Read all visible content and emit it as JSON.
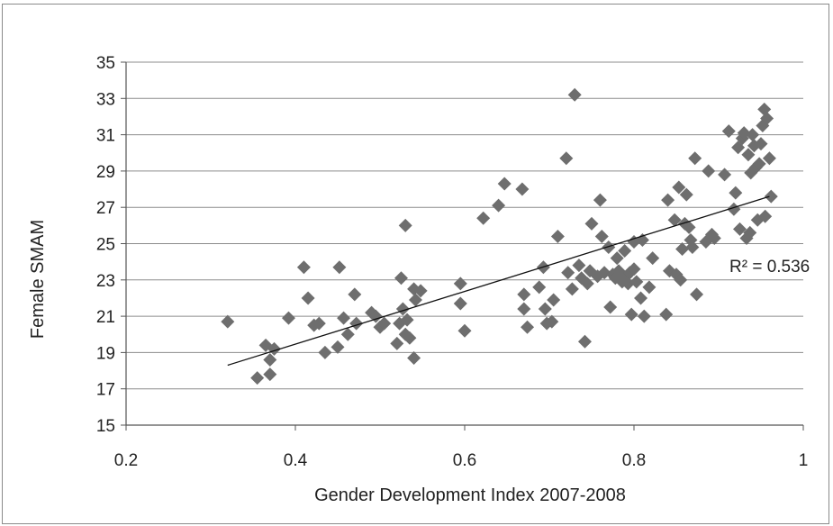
{
  "chart_data": {
    "type": "scatter",
    "xlabel": "Gender Development Index 2007-2008",
    "ylabel": "Female SMAM",
    "xlim": [
      0.2,
      1.0
    ],
    "ylim": [
      15,
      35
    ],
    "x_ticks": [
      "0.2",
      "0.4",
      "0.6",
      "0.8",
      "1"
    ],
    "y_ticks": [
      "15",
      "17",
      "19",
      "21",
      "23",
      "25",
      "27",
      "29",
      "31",
      "33",
      "35"
    ],
    "grid": "horizontal",
    "marker": "diamond",
    "marker_color": "#6e6e6e",
    "annotation": "R² = 0.536",
    "trendline": {
      "x": [
        0.32,
        0.96
      ],
      "y": [
        18.3,
        27.6
      ]
    },
    "points": [
      [
        0.32,
        20.7
      ],
      [
        0.355,
        17.6
      ],
      [
        0.365,
        19.4
      ],
      [
        0.37,
        17.8
      ],
      [
        0.37,
        18.6
      ],
      [
        0.375,
        19.2
      ],
      [
        0.392,
        20.9
      ],
      [
        0.41,
        23.7
      ],
      [
        0.415,
        22.0
      ],
      [
        0.422,
        20.5
      ],
      [
        0.428,
        20.6
      ],
      [
        0.435,
        19.0
      ],
      [
        0.45,
        19.3
      ],
      [
        0.452,
        23.7
      ],
      [
        0.457,
        20.9
      ],
      [
        0.462,
        20.0
      ],
      [
        0.47,
        22.2
      ],
      [
        0.472,
        20.6
      ],
      [
        0.49,
        21.2
      ],
      [
        0.495,
        21.0
      ],
      [
        0.5,
        20.4
      ],
      [
        0.505,
        20.6
      ],
      [
        0.52,
        19.5
      ],
      [
        0.523,
        20.6
      ],
      [
        0.525,
        23.1
      ],
      [
        0.527,
        21.4
      ],
      [
        0.53,
        26.0
      ],
      [
        0.53,
        20.0
      ],
      [
        0.532,
        20.8
      ],
      [
        0.535,
        19.8
      ],
      [
        0.54,
        18.7
      ],
      [
        0.54,
        22.5
      ],
      [
        0.542,
        21.9
      ],
      [
        0.548,
        22.4
      ],
      [
        0.595,
        21.7
      ],
      [
        0.595,
        22.8
      ],
      [
        0.6,
        20.2
      ],
      [
        0.622,
        26.4
      ],
      [
        0.64,
        27.1
      ],
      [
        0.647,
        28.3
      ],
      [
        0.668,
        28.0
      ],
      [
        0.67,
        22.2
      ],
      [
        0.67,
        21.4
      ],
      [
        0.674,
        20.4
      ],
      [
        0.688,
        22.6
      ],
      [
        0.693,
        23.7
      ],
      [
        0.695,
        21.4
      ],
      [
        0.697,
        20.6
      ],
      [
        0.703,
        20.7
      ],
      [
        0.705,
        21.9
      ],
      [
        0.71,
        25.4
      ],
      [
        0.72,
        29.7
      ],
      [
        0.722,
        23.4
      ],
      [
        0.727,
        22.5
      ],
      [
        0.73,
        33.2
      ],
      [
        0.735,
        23.8
      ],
      [
        0.738,
        23.1
      ],
      [
        0.742,
        19.6
      ],
      [
        0.745,
        22.8
      ],
      [
        0.748,
        23.5
      ],
      [
        0.75,
        26.1
      ],
      [
        0.757,
        23.2
      ],
      [
        0.76,
        27.4
      ],
      [
        0.762,
        25.4
      ],
      [
        0.765,
        23.4
      ],
      [
        0.77,
        24.8
      ],
      [
        0.772,
        21.5
      ],
      [
        0.775,
        23.3
      ],
      [
        0.778,
        23.1
      ],
      [
        0.78,
        24.2
      ],
      [
        0.782,
        23.5
      ],
      [
        0.786,
        22.9
      ],
      [
        0.789,
        24.6
      ],
      [
        0.791,
        23.2
      ],
      [
        0.793,
        22.8
      ],
      [
        0.795,
        23.4
      ],
      [
        0.797,
        21.1
      ],
      [
        0.8,
        23.6
      ],
      [
        0.8,
        25.1
      ],
      [
        0.803,
        22.9
      ],
      [
        0.808,
        22.0
      ],
      [
        0.81,
        25.2
      ],
      [
        0.812,
        21.0
      ],
      [
        0.818,
        22.6
      ],
      [
        0.822,
        24.2
      ],
      [
        0.838,
        21.1
      ],
      [
        0.84,
        27.4
      ],
      [
        0.842,
        23.5
      ],
      [
        0.848,
        26.3
      ],
      [
        0.85,
        23.3
      ],
      [
        0.853,
        28.1
      ],
      [
        0.855,
        23.0
      ],
      [
        0.857,
        24.7
      ],
      [
        0.86,
        26.1
      ],
      [
        0.862,
        27.7
      ],
      [
        0.865,
        25.9
      ],
      [
        0.867,
        25.2
      ],
      [
        0.869,
        24.8
      ],
      [
        0.872,
        29.7
      ],
      [
        0.874,
        22.2
      ],
      [
        0.885,
        25.1
      ],
      [
        0.888,
        29.0
      ],
      [
        0.892,
        25.5
      ],
      [
        0.895,
        25.3
      ],
      [
        0.907,
        28.8
      ],
      [
        0.912,
        31.2
      ],
      [
        0.918,
        26.9
      ],
      [
        0.92,
        27.8
      ],
      [
        0.923,
        30.3
      ],
      [
        0.925,
        25.8
      ],
      [
        0.928,
        30.8
      ],
      [
        0.93,
        31.1
      ],
      [
        0.933,
        25.3
      ],
      [
        0.935,
        29.9
      ],
      [
        0.937,
        25.6
      ],
      [
        0.938,
        28.9
      ],
      [
        0.94,
        31.0
      ],
      [
        0.942,
        30.4
      ],
      [
        0.944,
        29.2
      ],
      [
        0.946,
        26.3
      ],
      [
        0.948,
        29.4
      ],
      [
        0.95,
        30.5
      ],
      [
        0.952,
        31.5
      ],
      [
        0.954,
        32.4
      ],
      [
        0.955,
        26.5
      ],
      [
        0.957,
        31.9
      ],
      [
        0.96,
        29.7
      ],
      [
        0.962,
        27.6
      ]
    ]
  }
}
